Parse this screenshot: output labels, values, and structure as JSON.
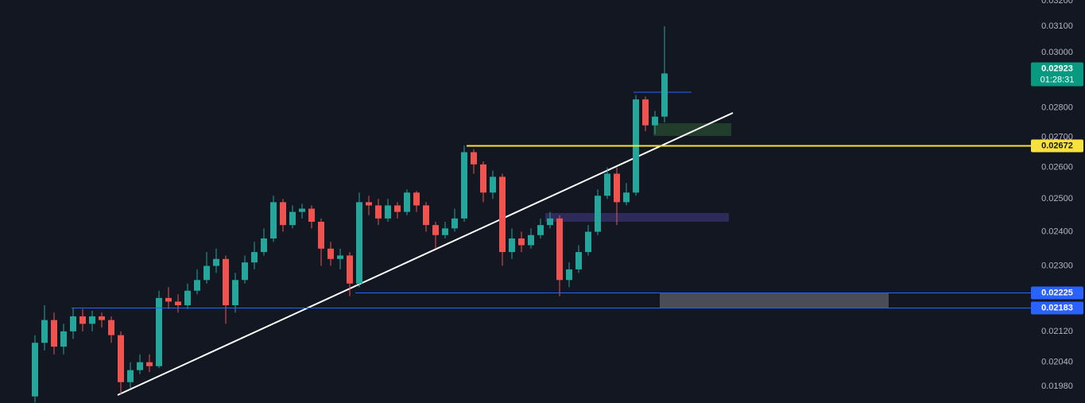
{
  "chart_data": {
    "type": "candlestick",
    "log_scale": true,
    "background": "#131722",
    "up_color": "#26a69a",
    "down_color": "#ef5350",
    "ylim": [
      0.01939,
      0.03203
    ],
    "yticks": [
      {
        "value": 0.032,
        "label": "0.03200"
      },
      {
        "value": 0.031,
        "label": "0.03100"
      },
      {
        "value": 0.03,
        "label": "0.03000"
      },
      {
        "value": 0.028,
        "label": "0.02800"
      },
      {
        "value": 0.027,
        "label": "0.02700"
      },
      {
        "value": 0.026,
        "label": "0.02600"
      },
      {
        "value": 0.025,
        "label": "0.02500"
      },
      {
        "value": 0.024,
        "label": "0.02400"
      },
      {
        "value": 0.023,
        "label": "0.02300"
      },
      {
        "value": 0.0212,
        "label": "0.02120"
      },
      {
        "value": 0.0204,
        "label": "0.02040"
      },
      {
        "value": 0.0198,
        "label": "0.01980"
      }
    ],
    "open": [
      0.01955,
      0.0209,
      0.0215,
      0.0208,
      0.0212,
      0.0216,
      0.0214,
      0.0216,
      0.0215,
      0.0211,
      0.0199,
      0.0202,
      0.0204,
      0.0203,
      0.0221,
      0.022,
      0.0219,
      0.0223,
      0.0226,
      0.023,
      0.0232,
      0.0219,
      0.0226,
      0.0231,
      0.0234,
      0.0238,
      0.0249,
      0.0242,
      0.0246,
      0.0247,
      0.0243,
      0.0235,
      0.0232,
      0.0233,
      0.0225,
      0.0249,
      0.0248,
      0.0244,
      0.0248,
      0.0246,
      0.0252,
      0.0248,
      0.0242,
      0.0239,
      0.0241,
      0.0244,
      0.0265,
      0.0261,
      0.0252,
      0.0257,
      0.0234,
      0.0238,
      0.0236,
      0.0239,
      0.0242,
      0.0244,
      0.0226,
      0.0229,
      0.0234,
      0.024,
      0.0251,
      0.0258,
      0.0249,
      0.0252,
      0.0283,
      0.0274,
      0.0277
    ],
    "high": [
      0.0211,
      0.0219,
      0.0217,
      0.0214,
      0.02183,
      0.0218,
      0.02175,
      0.0217,
      0.0216,
      0.0212,
      0.0204,
      0.0206,
      0.0206,
      0.0223,
      0.0224,
      0.0222,
      0.0225,
      0.0229,
      0.0234,
      0.0235,
      0.0233,
      0.0228,
      0.0233,
      0.0237,
      0.0241,
      0.0251,
      0.025,
      0.0248,
      0.02485,
      0.0248,
      0.0244,
      0.0237,
      0.0235,
      0.0234,
      0.0252,
      0.0251,
      0.025,
      0.025,
      0.0249,
      0.0253,
      0.02525,
      0.0249,
      0.0243,
      0.0243,
      0.0247,
      0.02672,
      0.0266,
      0.0262,
      0.0259,
      0.0258,
      0.0241,
      0.024,
      0.0241,
      0.0244,
      0.0246,
      0.0245,
      0.0231,
      0.0236,
      0.0242,
      0.0253,
      0.026,
      0.026,
      0.0255,
      0.02845,
      0.0284,
      0.0279,
      0.031
    ],
    "low": [
      0.0194,
      0.0207,
      0.0206,
      0.0206,
      0.021,
      0.0212,
      0.0212,
      0.0213,
      0.0209,
      0.0196,
      0.01975,
      0.0201,
      0.02015,
      0.02025,
      0.0218,
      0.0217,
      0.0218,
      0.0222,
      0.0225,
      0.0228,
      0.0214,
      0.0217,
      0.0225,
      0.0229,
      0.0233,
      0.0237,
      0.024,
      0.0241,
      0.0244,
      0.0241,
      0.023,
      0.023,
      0.0229,
      0.02215,
      0.0224,
      0.0245,
      0.0242,
      0.0243,
      0.0244,
      0.0245,
      0.0246,
      0.024,
      0.0235,
      0.0238,
      0.024,
      0.0243,
      0.0258,
      0.0249,
      0.025,
      0.023,
      0.0232,
      0.0234,
      0.0235,
      0.0238,
      0.0241,
      0.02215,
      0.0224,
      0.0228,
      0.0233,
      0.0239,
      0.025,
      0.0242,
      0.0248,
      0.0251,
      0.0272,
      0.0271,
      0.0275
    ],
    "close": [
      0.0209,
      0.0215,
      0.0208,
      0.0212,
      0.0216,
      0.0214,
      0.0216,
      0.0215,
      0.0211,
      0.0199,
      0.0202,
      0.0204,
      0.0203,
      0.0221,
      0.022,
      0.0219,
      0.0223,
      0.0226,
      0.023,
      0.0232,
      0.0219,
      0.0226,
      0.0231,
      0.0234,
      0.0238,
      0.0249,
      0.0242,
      0.0246,
      0.0247,
      0.0243,
      0.0235,
      0.0232,
      0.0233,
      0.0225,
      0.0249,
      0.0248,
      0.0244,
      0.0248,
      0.0246,
      0.0252,
      0.0248,
      0.0242,
      0.0239,
      0.0241,
      0.0244,
      0.0265,
      0.0261,
      0.0252,
      0.0257,
      0.0234,
      0.0238,
      0.0236,
      0.0239,
      0.0242,
      0.0244,
      0.0226,
      0.0229,
      0.0234,
      0.024,
      0.0251,
      0.0258,
      0.0249,
      0.0252,
      0.0283,
      0.0274,
      0.0277,
      0.02923
    ],
    "levels": [
      {
        "value": 0.02923,
        "color": "#089981",
        "countdown": "01:28:31"
      },
      {
        "value": 0.02672,
        "color": "#f7e13c"
      },
      {
        "value": 0.02225,
        "color": "#2962ff"
      },
      {
        "value": 0.02183,
        "color": "#2962ff"
      }
    ]
  }
}
